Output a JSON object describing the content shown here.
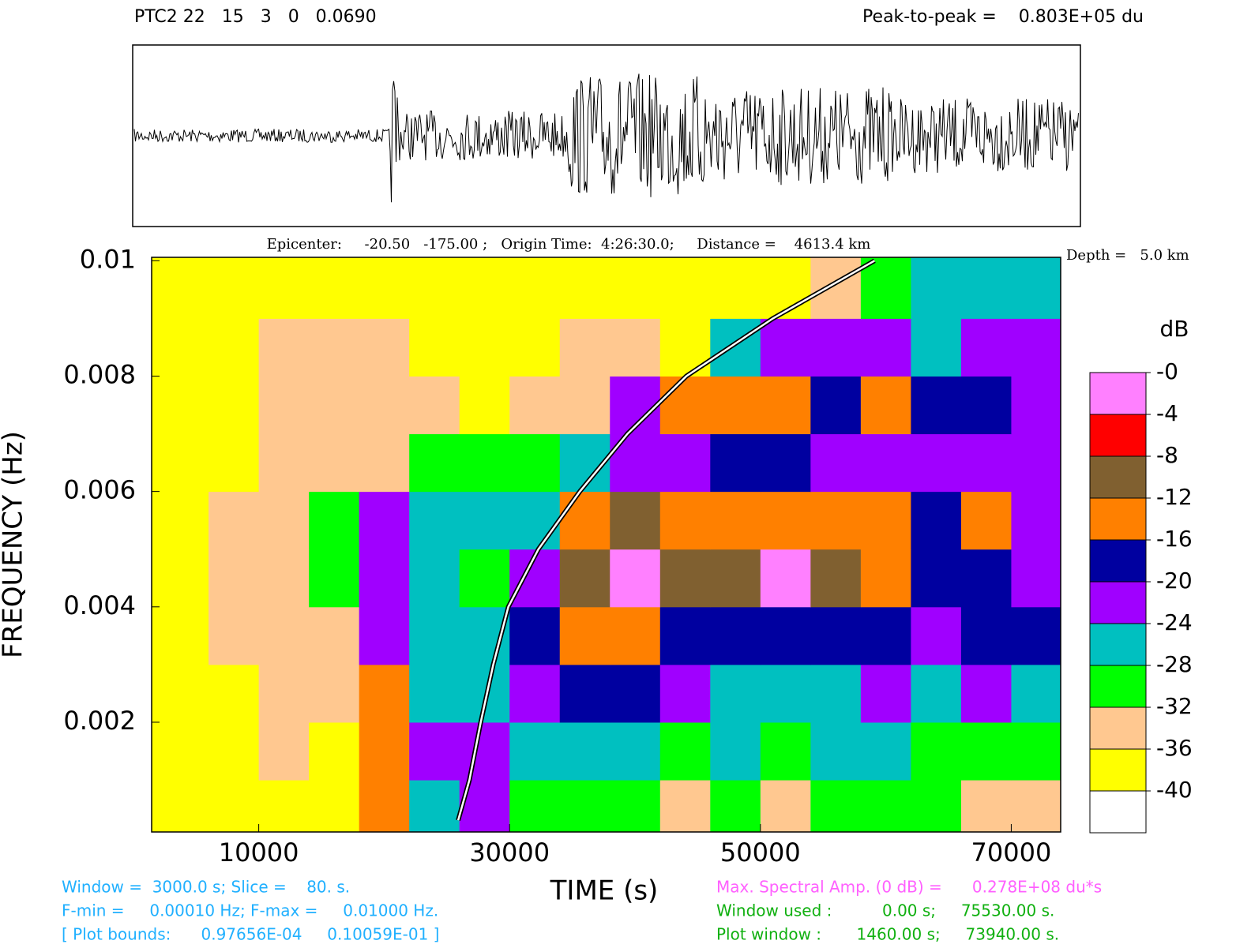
{
  "header": {
    "station": "PTC2 22   15   3   0   0.0690",
    "peak": "Peak-to-peak =    0.803E+05 du"
  },
  "chart_data": {
    "type": "heatmap",
    "title": "Epicenter:     -20.50   -175.00 ;   Origin Time:  4:26:30.0;     Distance =    4613.4 km",
    "subtitle": "Depth =   5.0 km",
    "x_label": "TIME (s)",
    "y_label": "FREQUENCY (Hz)",
    "xlim": [
      1460,
      73940
    ],
    "xticks": [
      10000,
      30000,
      50000,
      70000
    ],
    "ylim": [
      9.7656e-05,
      0.010059
    ],
    "yticks": [
      0.002,
      0.004,
      0.006,
      0.008,
      0.01
    ],
    "x": [
      4000,
      8000,
      12000,
      16000,
      20000,
      24000,
      28000,
      32000,
      36000,
      40000,
      44000,
      48000,
      52000,
      56000,
      60000,
      64000,
      68000,
      72000
    ],
    "y": [
      0.0005,
      0.0015,
      0.0025,
      0.0035,
      0.0045,
      0.0055,
      0.0065,
      0.0075,
      0.0085,
      0.0095
    ],
    "z": [
      [
        -38,
        -38,
        -36,
        -38,
        -14,
        -24,
        -20,
        -28,
        -30,
        -30,
        -32,
        -30,
        -34,
        -30,
        -28,
        -30,
        -32,
        -32
      ],
      [
        -38,
        -36,
        -34,
        -36,
        -12,
        -22,
        -22,
        -24,
        -24,
        -26,
        -28,
        -26,
        -28,
        -24,
        -26,
        -28,
        -30,
        -30
      ],
      [
        -36,
        -36,
        -34,
        -34,
        -14,
        -24,
        -24,
        -20,
        -16,
        -18,
        -22,
        -24,
        -26,
        -24,
        -20,
        -24,
        -22,
        -26
      ],
      [
        -36,
        -34,
        -32,
        -32,
        -20,
        -26,
        -24,
        -16,
        -12,
        -14,
        -16,
        -16,
        -16,
        -18,
        -16,
        -20,
        -18,
        -16
      ],
      [
        -36,
        -32,
        -32,
        -28,
        -22,
        -24,
        -28,
        -20,
        -8,
        -2,
        -8,
        -8,
        -2,
        -10,
        -14,
        -18,
        -18,
        -20
      ],
      [
        -36,
        -34,
        -32,
        -30,
        -20,
        -26,
        -24,
        -24,
        -12,
        -8,
        -12,
        -12,
        -14,
        -12,
        -12,
        -16,
        -12,
        -20
      ],
      [
        -38,
        -36,
        -34,
        -34,
        -32,
        -30,
        -30,
        -28,
        -24,
        -20,
        -20,
        -18,
        -18,
        -20,
        -20,
        -22,
        -22,
        -22
      ],
      [
        -36,
        -36,
        -34,
        -32,
        -32,
        -34,
        -36,
        -34,
        -32,
        -22,
        -14,
        -14,
        -12,
        -16,
        -14,
        -16,
        -18,
        -20
      ],
      [
        -38,
        -36,
        -34,
        -34,
        -34,
        -36,
        -36,
        -36,
        -34,
        -34,
        -36,
        -24,
        -22,
        -22,
        -22,
        -24,
        -22,
        -22
      ],
      [
        -38,
        -38,
        -38,
        -38,
        -36,
        -38,
        -38,
        -38,
        -38,
        -38,
        -38,
        -36,
        -36,
        -34,
        -30,
        -26,
        -24,
        -24
      ]
    ],
    "curve": {
      "x": [
        25900,
        26800,
        27700,
        28700,
        29900,
        32300,
        35600,
        39400,
        44100,
        51000,
        59100
      ],
      "y": [
        0.0003,
        0.001,
        0.002,
        0.003,
        0.004,
        0.005,
        0.006,
        0.007,
        0.008,
        0.009,
        0.01
      ]
    },
    "colorbar": {
      "title": "dB",
      "ticks": [
        {
          "value": 0,
          "label": "-0"
        },
        -4,
        -8,
        -12,
        -16,
        -20,
        -24,
        -28,
        -32,
        -36,
        -40
      ],
      "colors": [
        "#ff80ff",
        "#ff0000",
        "#806030",
        "#ff8000",
        "#0000a0",
        "#a000ff",
        "#00c0c0",
        "#00ff00",
        "#ffc890",
        "#ffff00",
        "#ffffff"
      ]
    }
  },
  "footer": {
    "left": [
      "Window =  3000.0 s; Slice =    80. s.",
      "F-min =     0.00010 Hz; F-max =     0.01000 Hz.",
      "[ Plot bounds:      0.97656E-04     0.10059E-01 ]"
    ],
    "right": [
      "Max. Spectral Amp. (0 dB) =      0.278E+08 du*s",
      "Window used :          0.00 s;     75530.00 s.",
      "Plot window :       1460.00 s;     73940.00 s."
    ]
  }
}
